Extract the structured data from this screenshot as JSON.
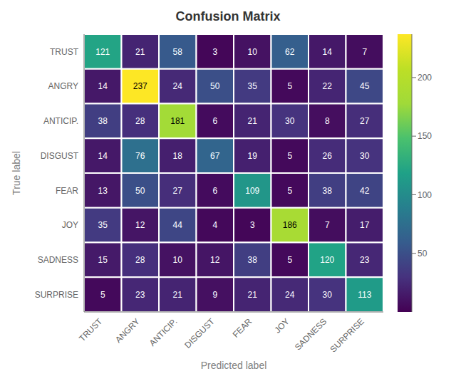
{
  "chart_data": {
    "type": "heatmap",
    "title": "Confusion Matrix",
    "x_label": "Predicted label",
    "y_label": "True label",
    "categories": [
      "TRUST",
      "ANGRY",
      "ANTICIP.",
      "DISGUST",
      "FEAR",
      "JOY",
      "SADNESS",
      "SURPRISE"
    ],
    "values": [
      [
        121,
        21,
        58,
        3,
        10,
        62,
        14,
        7
      ],
      [
        14,
        237,
        24,
        50,
        35,
        5,
        22,
        45
      ],
      [
        38,
        28,
        181,
        6,
        21,
        30,
        8,
        27
      ],
      [
        14,
        76,
        18,
        67,
        19,
        5,
        26,
        30
      ],
      [
        13,
        50,
        27,
        6,
        109,
        5,
        38,
        42
      ],
      [
        35,
        12,
        44,
        4,
        3,
        186,
        7,
        17
      ],
      [
        15,
        28,
        10,
        12,
        38,
        5,
        120,
        23
      ],
      [
        5,
        23,
        21,
        9,
        21,
        24,
        30,
        113
      ]
    ],
    "color": "viridis",
    "colorbar_lim": [
      0,
      237
    ],
    "colorbar_ticks": [
      50,
      100,
      150,
      200
    ],
    "data_labels": true
  }
}
